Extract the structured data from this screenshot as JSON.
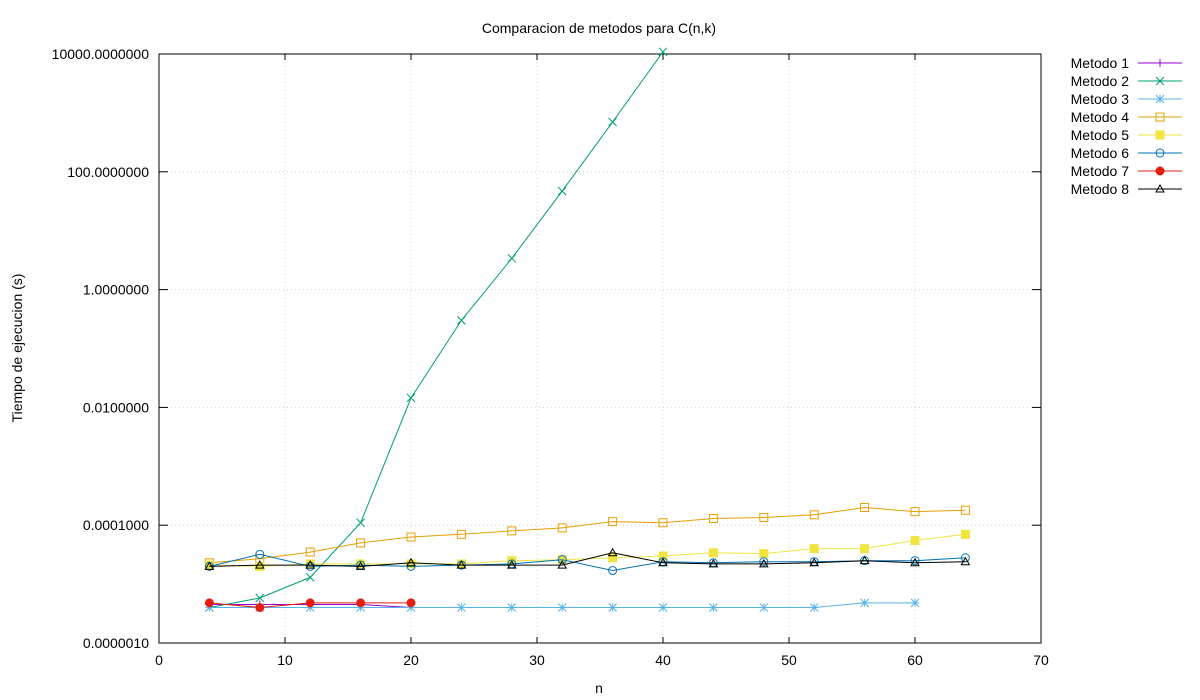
{
  "chart_data": {
    "type": "line",
    "title": "Comparacion de metodos para C(n,k)",
    "xlabel": "n",
    "ylabel": "Tiempo de ejecucion (s)",
    "xlim": [
      0,
      70
    ],
    "ylim": [
      1e-06,
      10000
    ],
    "yscale": "log",
    "grid": true,
    "legend_position": "outside-right",
    "xticks": [
      0,
      10,
      20,
      30,
      40,
      50,
      60,
      70
    ],
    "xtick_labels": [
      "0",
      "10",
      "20",
      "30",
      "40",
      "50",
      "60",
      "70"
    ],
    "yticks": [
      1e-06,
      0.0001,
      0.01,
      1,
      100,
      10000
    ],
    "ytick_labels": [
      "0.0000010",
      "0.0001000",
      "0.0100000",
      "1.0000000",
      "100.0000000",
      "10000.0000000"
    ],
    "series": [
      {
        "name": "Metodo 1",
        "color": "#9400d3",
        "marker": "plus",
        "x": [
          4,
          8,
          12,
          16,
          20
        ],
        "y": [
          4.5e-06,
          4.5e-06,
          4.5e-06,
          4.5e-06,
          4e-06
        ]
      },
      {
        "name": "Metodo 2",
        "color": "#009e73",
        "marker": "cross",
        "x": [
          4,
          8,
          12,
          16,
          20,
          24,
          28,
          32,
          36,
          40
        ],
        "y": [
          4e-06,
          5.8e-06,
          1.3e-05,
          0.00011,
          0.0145,
          0.3,
          3.4,
          47,
          700,
          10900
        ]
      },
      {
        "name": "Metodo 3",
        "color": "#56b4e9",
        "marker": "star",
        "x": [
          4,
          8,
          12,
          16,
          20,
          24,
          28,
          32,
          36,
          40,
          44,
          48,
          52,
          56,
          60
        ],
        "y": [
          4e-06,
          4e-06,
          4e-06,
          4e-06,
          4e-06,
          4e-06,
          4e-06,
          4e-06,
          4e-06,
          4e-06,
          4e-06,
          4e-06,
          4e-06,
          4.8e-06,
          4.8e-06
        ]
      },
      {
        "name": "Metodo 4",
        "color": "#e69f00",
        "marker": "square-open",
        "x": [
          4,
          8,
          12,
          16,
          20,
          24,
          28,
          32,
          36,
          40,
          44,
          48,
          52,
          56,
          60,
          64
        ],
        "y": [
          2.3e-05,
          2.7e-05,
          3.5e-05,
          5e-05,
          6.3e-05,
          7e-05,
          8e-05,
          9e-05,
          0.000115,
          0.00011,
          0.00013,
          0.000135,
          0.00015,
          0.0002,
          0.00017,
          0.00018
        ]
      },
      {
        "name": "Metodo 5",
        "color": "#f0e442",
        "marker": "square-filled",
        "x": [
          4,
          8,
          12,
          16,
          20,
          24,
          28,
          32,
          36,
          40,
          44,
          48,
          52,
          56,
          60,
          64
        ],
        "y": [
          2.1e-05,
          2e-05,
          2.2e-05,
          2.2e-05,
          2.2e-05,
          2.2e-05,
          2.5e-05,
          2.6e-05,
          2.8e-05,
          3e-05,
          3.4e-05,
          3.3e-05,
          4e-05,
          4e-05,
          5.5e-05,
          7e-05
        ]
      },
      {
        "name": "Metodo 6",
        "color": "#0072b2",
        "marker": "circle-open",
        "x": [
          4,
          8,
          12,
          16,
          20,
          24,
          28,
          32,
          36,
          40,
          44,
          48,
          52,
          56,
          60,
          64
        ],
        "y": [
          2e-05,
          3.2e-05,
          2e-05,
          2.1e-05,
          2e-05,
          2.1e-05,
          2.2e-05,
          2.6e-05,
          1.7e-05,
          2.4e-05,
          2.3e-05,
          2.4e-05,
          2.4e-05,
          2.5e-05,
          2.5e-05,
          2.8e-05
        ]
      },
      {
        "name": "Metodo 7",
        "color": "#e51e10",
        "marker": "circle-filled",
        "x": [
          4,
          8,
          12,
          16,
          20
        ],
        "y": [
          4.8e-06,
          4e-06,
          4.8e-06,
          4.8e-06,
          4.8e-06
        ]
      },
      {
        "name": "Metodo 8",
        "color": "#000000",
        "marker": "triangle-open",
        "x": [
          4,
          8,
          12,
          16,
          20,
          24,
          28,
          32,
          36,
          40,
          44,
          48,
          52,
          56,
          60,
          64
        ],
        "y": [
          2e-05,
          2.1e-05,
          2.1e-05,
          2e-05,
          2.3e-05,
          2.1e-05,
          2.1e-05,
          2.1e-05,
          3.4e-05,
          2.3e-05,
          2.2e-05,
          2.2e-05,
          2.3e-05,
          2.5e-05,
          2.3e-05,
          2.4e-05
        ]
      }
    ]
  }
}
